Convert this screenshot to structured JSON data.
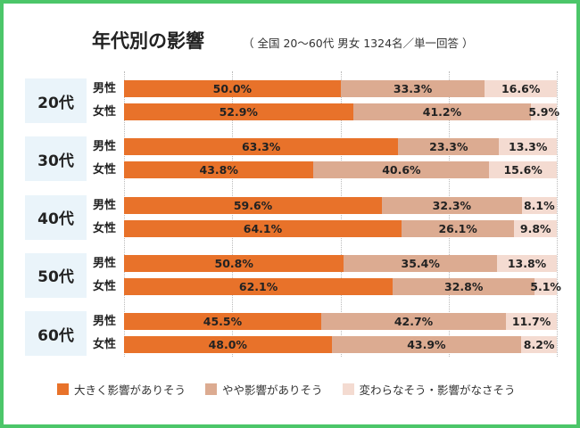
{
  "chart_data": {
    "type": "bar",
    "orientation": "horizontal-stacked-100",
    "title": "年代別の影響",
    "subtitle": "（ 全国 20〜60代 男女 1324名／単一回答 ）",
    "legend_position": "bottom",
    "series_names": [
      "大きく影響がありそう",
      "やや影響がありそう",
      "変わらなそう・影響がなさそう"
    ],
    "colors": [
      "#e8722a",
      "#dcab91",
      "#f4dbd1"
    ],
    "xlim": [
      0,
      100
    ],
    "groups": [
      {
        "label": "20代",
        "rows": [
          {
            "gender": "男性",
            "values": [
              50.0,
              33.3,
              16.6
            ]
          },
          {
            "gender": "女性",
            "values": [
              52.9,
              41.2,
              5.9
            ]
          }
        ]
      },
      {
        "label": "30代",
        "rows": [
          {
            "gender": "男性",
            "values": [
              63.3,
              23.3,
              13.3
            ]
          },
          {
            "gender": "女性",
            "values": [
              43.8,
              40.6,
              15.6
            ]
          }
        ]
      },
      {
        "label": "40代",
        "rows": [
          {
            "gender": "男性",
            "values": [
              59.6,
              32.3,
              8.1
            ]
          },
          {
            "gender": "女性",
            "values": [
              64.1,
              26.1,
              9.8
            ]
          }
        ]
      },
      {
        "label": "50代",
        "rows": [
          {
            "gender": "男性",
            "values": [
              50.8,
              35.4,
              13.8
            ]
          },
          {
            "gender": "女性",
            "values": [
              62.1,
              32.8,
              5.1
            ]
          }
        ]
      },
      {
        "label": "60代",
        "rows": [
          {
            "gender": "男性",
            "values": [
              45.5,
              42.7,
              11.7
            ]
          },
          {
            "gender": "女性",
            "values": [
              48.0,
              43.9,
              8.2
            ]
          }
        ]
      }
    ]
  }
}
